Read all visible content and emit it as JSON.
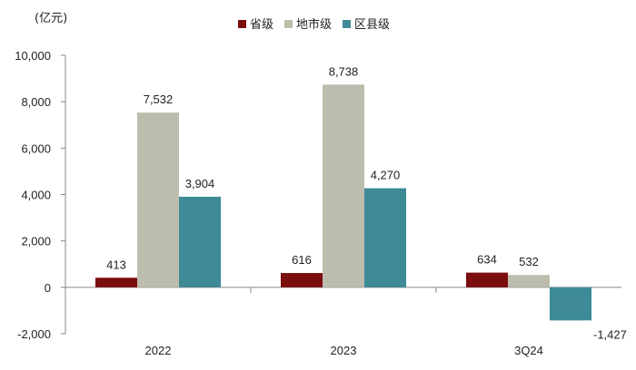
{
  "chart_data": {
    "type": "bar",
    "unit_label": "(亿元)",
    "categories": [
      "2022",
      "2023",
      "3Q24"
    ],
    "series": [
      {
        "name": "省级",
        "color": "#7b0d0d",
        "values": [
          413,
          616,
          634
        ]
      },
      {
        "name": "地市级",
        "color": "#bdbdad",
        "values": [
          7532,
          8738,
          532
        ]
      },
      {
        "name": "区县级",
        "color": "#3e8a97",
        "values": [
          3904,
          4270,
          -1427
        ]
      }
    ],
    "data_labels": [
      [
        "413",
        "616",
        "634"
      ],
      [
        "7,532",
        "8,738",
        "532"
      ],
      [
        "3,904",
        "4,270",
        "-1,427"
      ]
    ],
    "yticks": [
      -2000,
      0,
      2000,
      4000,
      6000,
      8000,
      10000
    ],
    "ytick_labels": [
      "-2,000",
      "0",
      "2,000",
      "4,000",
      "6,000",
      "8,000",
      "10,000"
    ],
    "ylim": [
      -2000,
      10000
    ],
    "legend_position": "top-center",
    "grid": false
  }
}
